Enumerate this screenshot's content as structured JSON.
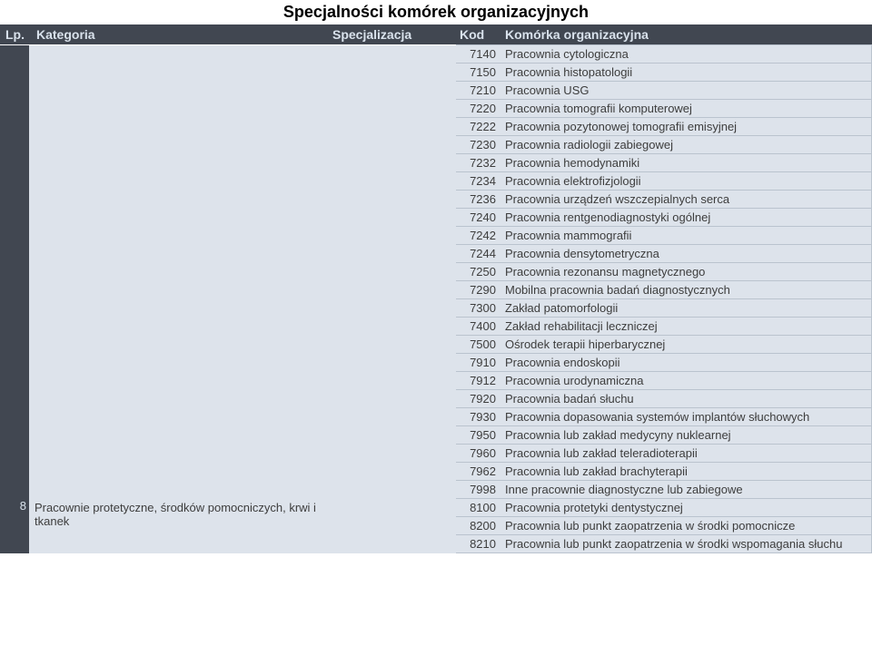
{
  "title": "Specjalności komórek organizacyjnych",
  "headers": {
    "lp": "Lp.",
    "kategoria": "Kategoria",
    "specjalizacja": "Specjalizacja",
    "kod": "Kod",
    "komorka": "Komórka organizacyjna"
  },
  "colors": {
    "dark_bg": "#414751",
    "dark_fg": "#d9e2ec",
    "cell_bg": "#dde3eb",
    "cell_border": "#bac3ce",
    "text": "#3d3d3d"
  },
  "rows_block1": [
    {
      "kod": "7140",
      "kom": "Pracownia cytologiczna"
    },
    {
      "kod": "7150",
      "kom": "Pracownia histopatologii"
    },
    {
      "kod": "7210",
      "kom": "Pracownia USG"
    },
    {
      "kod": "7220",
      "kom": "Pracownia tomografii komputerowej"
    },
    {
      "kod": "7222",
      "kom": "Pracownia pozytonowej tomografii emisyjnej"
    },
    {
      "kod": "7230",
      "kom": "Pracownia radiologii zabiegowej"
    },
    {
      "kod": "7232",
      "kom": "Pracownia hemodynamiki"
    },
    {
      "kod": "7234",
      "kom": "Pracownia elektrofizjologii"
    },
    {
      "kod": "7236",
      "kom": "Pracownia urządzeń wszczepialnych serca"
    },
    {
      "kod": "7240",
      "kom": "Pracownia rentgenodiagnostyki ogólnej"
    },
    {
      "kod": "7242",
      "kom": "Pracownia mammografii"
    },
    {
      "kod": "7244",
      "kom": "Pracownia densytometryczna"
    },
    {
      "kod": "7250",
      "kom": "Pracownia rezonansu magnetycznego"
    },
    {
      "kod": "7290",
      "kom": "Mobilna pracownia badań diagnostycznych"
    },
    {
      "kod": "7300",
      "kom": "Zakład patomorfologii"
    },
    {
      "kod": "7400",
      "kom": "Zakład rehabilitacji leczniczej"
    },
    {
      "kod": "7500",
      "kom": "Ośrodek terapii hiperbarycznej"
    },
    {
      "kod": "7910",
      "kom": "Pracownia endoskopii"
    },
    {
      "kod": "7912",
      "kom": "Pracownia urodynamiczna"
    },
    {
      "kod": "7920",
      "kom": "Pracownia badań słuchu"
    },
    {
      "kod": "7930",
      "kom": "Pracownia dopasowania systemów implantów słuchowych"
    },
    {
      "kod": "7950",
      "kom": "Pracownia lub zakład medycyny nuklearnej"
    },
    {
      "kod": "7960",
      "kom": "Pracownia lub zakład teleradioterapii"
    },
    {
      "kod": "7962",
      "kom": "Pracownia lub zakład brachyterapii"
    },
    {
      "kod": "7998",
      "kom": "Inne pracownie diagnostyczne lub zabiegowe"
    }
  ],
  "block2": {
    "lp": "8",
    "kategoria": "Pracownie protetyczne, środków pomocniczych, krwi i tkanek",
    "rows": [
      {
        "kod": "8100",
        "kom": "Pracownia protetyki dentystycznej"
      },
      {
        "kod": "8200",
        "kom": "Pracownia lub punkt zaopatrzenia w środki pomocnicze"
      },
      {
        "kod": "8210",
        "kom": "Pracownia lub punkt zaopatrzenia w środki wspomagania słuchu"
      }
    ]
  }
}
